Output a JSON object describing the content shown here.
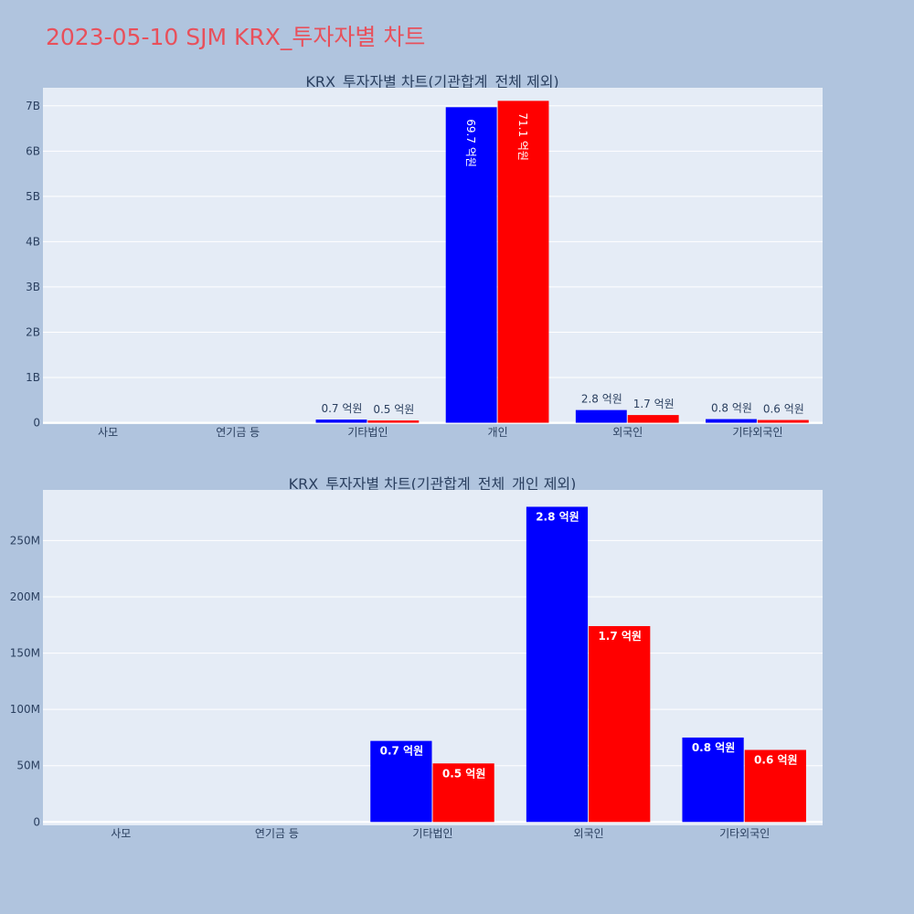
{
  "page": {
    "title": "2023-05-10 SJM KRX_투자자별 차트",
    "background": "#b0c4de",
    "plot_background": "#e5ecf6",
    "title_color": "#e8505b"
  },
  "chart_data": [
    {
      "type": "bar",
      "title": "KRX_투자자별 차트(기관합계_전체 제외)",
      "categories": [
        "사모",
        "연기금 등",
        "기타법인",
        "개인",
        "외국인",
        "기타외국인"
      ],
      "series": [
        {
          "color": "#0000ff",
          "values": [
            0,
            0,
            70000000,
            6970000000,
            280000000,
            80000000
          ],
          "labels": [
            "",
            "",
            "0.7 억원",
            "69.7 억원",
            "2.8 억원",
            "0.8 억원"
          ]
        },
        {
          "color": "#ff0000",
          "values": [
            0,
            0,
            50000000,
            7110000000,
            170000000,
            60000000
          ],
          "labels": [
            "",
            "",
            "0.5 억원",
            "71.1 억원",
            "1.7 억원",
            "0.6 억원"
          ]
        }
      ],
      "ylim": [
        -30000000,
        7400000000
      ],
      "yticks": [
        0,
        1000000000,
        2000000000,
        3000000000,
        4000000000,
        5000000000,
        6000000000,
        7000000000
      ],
      "ytick_labels": [
        "0",
        "1B",
        "2B",
        "3B",
        "4B",
        "5B",
        "6B",
        "7B"
      ],
      "xlabel": "",
      "ylabel": "",
      "grid": true
    },
    {
      "type": "bar",
      "title": "KRX_투자자별 차트(기관합계_전체_개인 제외)",
      "categories": [
        "사모",
        "연기금 등",
        "기타법인",
        "외국인",
        "기타외국인"
      ],
      "series": [
        {
          "color": "#0000ff",
          "values": [
            0,
            0,
            72000000,
            280000000,
            75000000
          ],
          "labels": [
            "",
            "",
            "0.7 억원",
            "2.8 억원",
            "0.8 억원"
          ]
        },
        {
          "color": "#ff0000",
          "values": [
            0,
            0,
            52000000,
            174000000,
            64000000
          ],
          "labels": [
            "",
            "",
            "0.5 억원",
            "1.7 억원",
            "0.6 억원"
          ]
        }
      ],
      "ylim": [
        -3000000,
        295000000
      ],
      "yticks": [
        0,
        50000000,
        100000000,
        150000000,
        200000000,
        250000000
      ],
      "ytick_labels": [
        "0",
        "50M",
        "100M",
        "150M",
        "200M",
        "250M"
      ],
      "xlabel": "",
      "ylabel": "",
      "grid": true
    }
  ]
}
